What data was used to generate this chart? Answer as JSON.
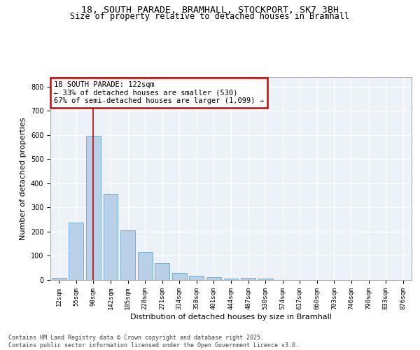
{
  "title_line1": "18, SOUTH PARADE, BRAMHALL, STOCKPORT, SK7 3BH",
  "title_line2": "Size of property relative to detached houses in Bramhall",
  "xlabel": "Distribution of detached houses by size in Bramhall",
  "ylabel": "Number of detached properties",
  "categories": [
    "12sqm",
    "55sqm",
    "98sqm",
    "142sqm",
    "185sqm",
    "228sqm",
    "271sqm",
    "314sqm",
    "358sqm",
    "401sqm",
    "444sqm",
    "487sqm",
    "530sqm",
    "574sqm",
    "617sqm",
    "660sqm",
    "703sqm",
    "746sqm",
    "790sqm",
    "833sqm",
    "876sqm"
  ],
  "values": [
    8,
    238,
    598,
    355,
    205,
    117,
    70,
    28,
    18,
    13,
    5,
    8,
    5,
    0,
    0,
    0,
    0,
    0,
    0,
    0,
    0
  ],
  "bar_color": "#b8d0e8",
  "bar_edge_color": "#7aadd4",
  "vline_x_idx": 2,
  "vline_color": "#cc0000",
  "annotation_text": "18 SOUTH PARADE: 122sqm\n← 33% of detached houses are smaller (530)\n67% of semi-detached houses are larger (1,099) →",
  "annotation_box_edgecolor": "#cc0000",
  "annotation_box_facecolor": "#ffffff",
  "ylim": [
    0,
    840
  ],
  "yticks": [
    0,
    100,
    200,
    300,
    400,
    500,
    600,
    700,
    800
  ],
  "background_color": "#edf1f8",
  "grid_color": "#ffffff",
  "footer_text": "Contains HM Land Registry data © Crown copyright and database right 2025.\nContains public sector information licensed under the Open Government Licence v3.0.",
  "title_fontsize": 9.5,
  "subtitle_fontsize": 8.5,
  "tick_fontsize": 6.5,
  "ylabel_fontsize": 8,
  "xlabel_fontsize": 8,
  "annotation_fontsize": 7.5,
  "footer_fontsize": 6
}
